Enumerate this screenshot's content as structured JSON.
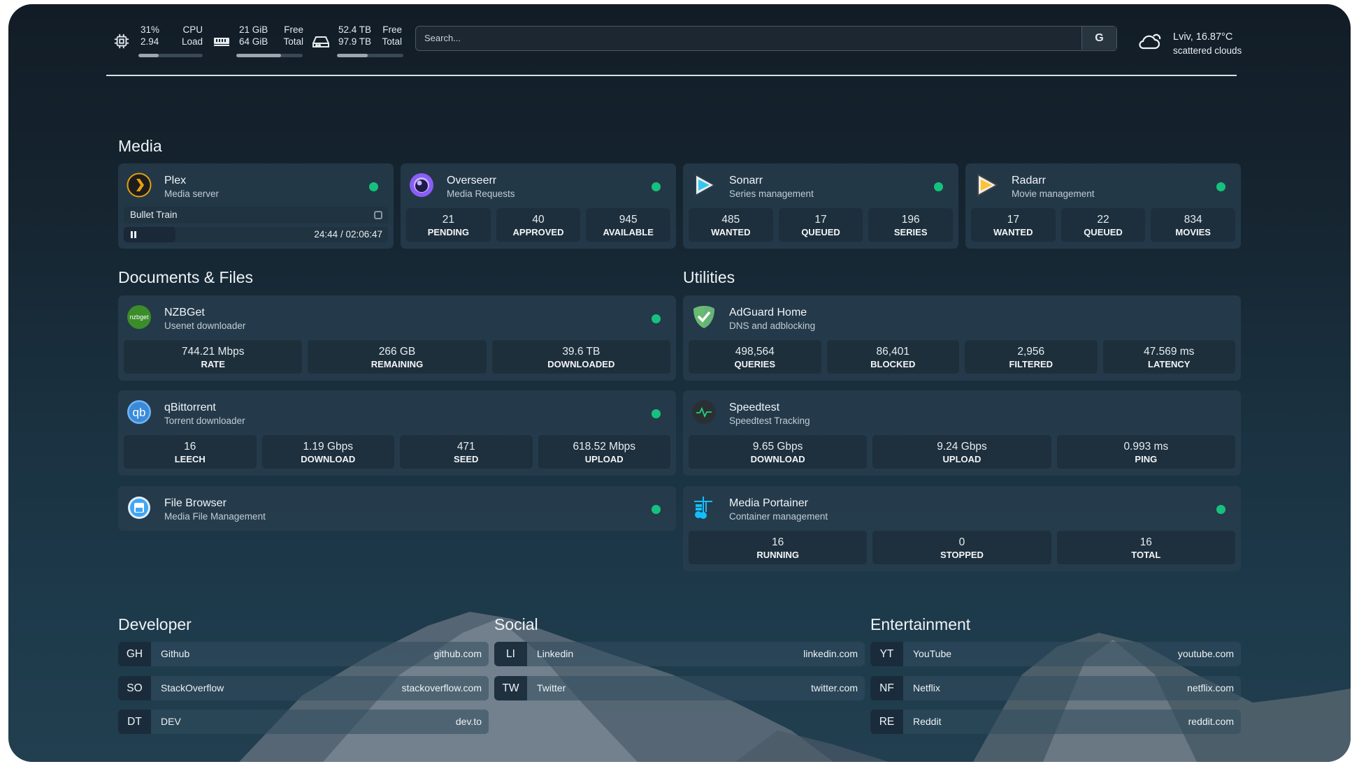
{
  "topbar": {
    "cpu": {
      "icon": "cpu-chip-icon",
      "value1": "31%",
      "value2": "2.94",
      "label1": "CPU",
      "label2": "Load",
      "usage_percent": 31
    },
    "memory": {
      "icon": "memory-icon",
      "value1": "21 GiB",
      "value2": "64 GiB",
      "label1": "Free",
      "label2": "Total",
      "usage_percent": 67
    },
    "disk": {
      "icon": "hard-drive-icon",
      "value1": "52.4 TB",
      "value2": "97.9 TB",
      "label1": "Free",
      "label2": "Total",
      "usage_percent": 46
    },
    "search": {
      "placeholder": "Search...",
      "button": "G"
    },
    "weather": {
      "icon": "cloud-sun-icon",
      "location": "Lviv, 16.87°C",
      "description": "scattered clouds"
    }
  },
  "sections": {
    "media": "Media",
    "documents": "Documents & Files",
    "utilities": "Utilities",
    "developer": "Developer",
    "social": "Social",
    "entertainment": "Entertainment"
  },
  "plex": {
    "title": "Plex",
    "subtitle": "Media server",
    "now_playing": "Bullet Train",
    "time": "24:44 / 02:06:47",
    "progress_percent": 19.5,
    "status": "online"
  },
  "cards": [
    {
      "id": "overseerr",
      "title": "Overseerr",
      "subtitle": "Media Requests",
      "icon": "overseerr-icon",
      "stats": [
        {
          "value": "21",
          "label": "PENDING"
        },
        {
          "value": "40",
          "label": "APPROVED"
        },
        {
          "value": "945",
          "label": "AVAILABLE"
        }
      ],
      "status": true
    },
    {
      "id": "sonarr",
      "title": "Sonarr",
      "subtitle": "Series management",
      "icon": "sonarr-icon",
      "stats": [
        {
          "value": "485",
          "label": "WANTED"
        },
        {
          "value": "17",
          "label": "QUEUED"
        },
        {
          "value": "196",
          "label": "SERIES"
        }
      ],
      "status": true
    },
    {
      "id": "radarr",
      "title": "Radarr",
      "subtitle": "Movie management",
      "icon": "radarr-icon",
      "stats": [
        {
          "value": "17",
          "label": "WANTED"
        },
        {
          "value": "22",
          "label": "QUEUED"
        },
        {
          "value": "834",
          "label": "MOVIES"
        }
      ],
      "status": true
    },
    {
      "id": "nzbget",
      "title": "NZBGet",
      "subtitle": "Usenet downloader",
      "icon": "nzbget-icon",
      "icon_text": "nzbget",
      "stats": [
        {
          "value": "744.21 Mbps",
          "label": "RATE"
        },
        {
          "value": "266 GB",
          "label": "REMAINING"
        },
        {
          "value": "39.6 TB",
          "label": "DOWNLOADED"
        }
      ],
      "status": true
    },
    {
      "id": "qbittorrent",
      "title": "qBittorrent",
      "subtitle": "Torrent downloader",
      "icon": "qbittorrent-icon",
      "icon_text": "qb",
      "stats": [
        {
          "value": "16",
          "label": "LEECH"
        },
        {
          "value": "1.19 Gbps",
          "label": "DOWNLOAD"
        },
        {
          "value": "471",
          "label": "SEED"
        },
        {
          "value": "618.52 Mbps",
          "label": "UPLOAD"
        }
      ],
      "status": true
    },
    {
      "id": "filebrowser",
      "title": "File Browser",
      "subtitle": "Media File Management",
      "icon": "file-browser-icon",
      "stats": [],
      "status": true
    },
    {
      "id": "adguard",
      "title": "AdGuard Home",
      "subtitle": "DNS and adblocking",
      "icon": "adguard-shield-icon",
      "stats": [
        {
          "value": "498,564",
          "label": "QUERIES"
        },
        {
          "value": "86,401",
          "label": "BLOCKED"
        },
        {
          "value": "2,956",
          "label": "FILTERED"
        },
        {
          "value": "47.569 ms",
          "label": "LATENCY"
        }
      ],
      "status": false
    },
    {
      "id": "speedtest",
      "title": "Speedtest",
      "subtitle": "Speedtest Tracking",
      "icon": "speedtest-pulse-icon",
      "stats": [
        {
          "value": "9.65 Gbps",
          "label": "DOWNLOAD"
        },
        {
          "value": "9.24 Gbps",
          "label": "UPLOAD"
        },
        {
          "value": "0.993 ms",
          "label": "PING"
        }
      ],
      "status": false
    },
    {
      "id": "portainer",
      "title": "Media Portainer",
      "subtitle": "Container management",
      "icon": "portainer-icon",
      "stats": [
        {
          "value": "16",
          "label": "RUNNING"
        },
        {
          "value": "0",
          "label": "STOPPED"
        },
        {
          "value": "16",
          "label": "TOTAL"
        }
      ],
      "status": true
    }
  ],
  "links": {
    "developer": [
      {
        "tag": "GH",
        "name": "Github",
        "url": "github.com"
      },
      {
        "tag": "SO",
        "name": "StackOverflow",
        "url": "stackoverflow.com"
      },
      {
        "tag": "DT",
        "name": "DEV",
        "url": "dev.to"
      }
    ],
    "social": [
      {
        "tag": "LI",
        "name": "Linkedin",
        "url": "linkedin.com"
      },
      {
        "tag": "TW",
        "name": "Twitter",
        "url": "twitter.com"
      }
    ],
    "entertainment": [
      {
        "tag": "YT",
        "name": "YouTube",
        "url": "youtube.com"
      },
      {
        "tag": "NF",
        "name": "Netflix",
        "url": "netflix.com"
      },
      {
        "tag": "RE",
        "name": "Reddit",
        "url": "reddit.com"
      }
    ]
  },
  "colors": {
    "status_online": "#16c17e",
    "card_bg": "#283e4e",
    "accent_plex": "#e5a00d",
    "accent_overseerr": "#8b5cf6",
    "accent_sonarr": "#35c5f0",
    "accent_radarr": "#ffc230"
  }
}
